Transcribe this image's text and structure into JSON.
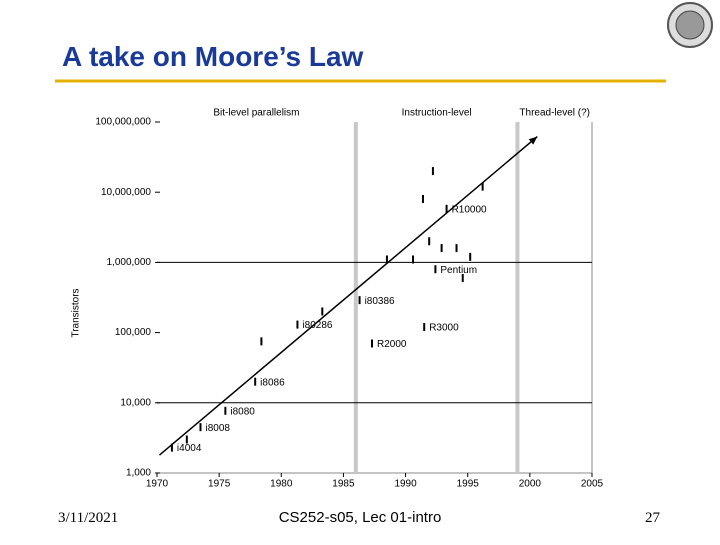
{
  "slide": {
    "title": "A take on Moore’s Law",
    "date": "3/11/2021",
    "footer": "CS252-s05, Lec 01-intro",
    "page": "27"
  },
  "chart_data": {
    "type": "scatter",
    "log_y": true,
    "y_label": "Transistors",
    "eras": [
      "Bit-level parallelism",
      "Instruction-level",
      "Thread-level (?)"
    ],
    "era_boundaries": [
      1986,
      1999
    ],
    "hlines": [
      10000,
      1000000
    ],
    "x": [
      1971.2,
      1973.5,
      1975.5,
      1977.9,
      1981.3,
      1986.3,
      1987.3,
      1991.5,
      1992.4,
      1993.3,
      1972.4,
      1978.4,
      1983.3,
      1988.5,
      1990.6,
      1991.9,
      1992.9,
      1994.1,
      1995.2,
      1996.2,
      1992.2,
      1994.6,
      1991.4
    ],
    "values": [
      2300,
      4500,
      7700,
      20000,
      130000,
      290000,
      70000,
      120000,
      800000,
      5800000,
      3000,
      75000,
      200000,
      1100000,
      1100000,
      2000000,
      1600000,
      1600000,
      1200000,
      12000000,
      20000000,
      600000,
      8000000
    ],
    "labels": [
      "i4004",
      "i8008",
      "i8080",
      "i8086",
      "i80286",
      "i80386",
      "R2000",
      "R3000",
      "Pentium",
      "R10000",
      null,
      null,
      null,
      null,
      null,
      null,
      null,
      null,
      null,
      null,
      null,
      null,
      null
    ],
    "color": "#000000",
    "trend": {
      "x": [
        1970.2,
        2000.6
      ],
      "y": [
        1800,
        62000000
      ]
    },
    "xlim": [
      1970,
      2005
    ],
    "xticks": [
      1970,
      1975,
      1980,
      1985,
      1990,
      1995,
      2000,
      2005
    ],
    "ylim": [
      1000,
      100000000
    ],
    "yticks": [
      {
        "value": 1000,
        "label": "1,000"
      },
      {
        "value": 10000,
        "label": "10,000"
      },
      {
        "value": 100000,
        "label": "100,000"
      },
      {
        "value": 1000000,
        "label": "1,000,000"
      },
      {
        "value": 10000000,
        "label": "10,000,000"
      },
      {
        "value": 100000000,
        "label": "100,000,000"
      }
    ]
  }
}
